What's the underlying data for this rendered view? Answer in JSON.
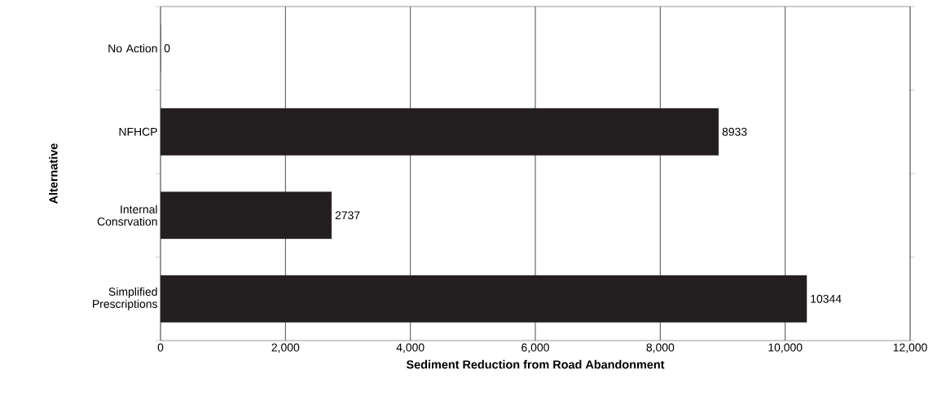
{
  "chart_data": {
    "type": "bar",
    "orientation": "horizontal",
    "xlabel": "Sediment Reduction from Road Abandonment",
    "ylabel": "Alternative",
    "categories": [
      "No Action",
      "NFHCP",
      "Internal Consrvation",
      "Simplified Prescriptions"
    ],
    "values": [
      0,
      8933,
      2737,
      10344
    ],
    "color": "#231f20",
    "data_labels": true,
    "grid": "x",
    "xlim": [
      0,
      12000
    ],
    "xticks": [
      0,
      {
        "value": 2000,
        "label": "2,000"
      },
      {
        "value": 4000,
        "label": "4,000"
      },
      {
        "value": 6000,
        "label": "6,000"
      },
      {
        "value": 8000,
        "label": "8,000"
      },
      {
        "value": 10000,
        "label": "10,000"
      },
      {
        "value": 12000,
        "label": "12,000"
      }
    ]
  }
}
